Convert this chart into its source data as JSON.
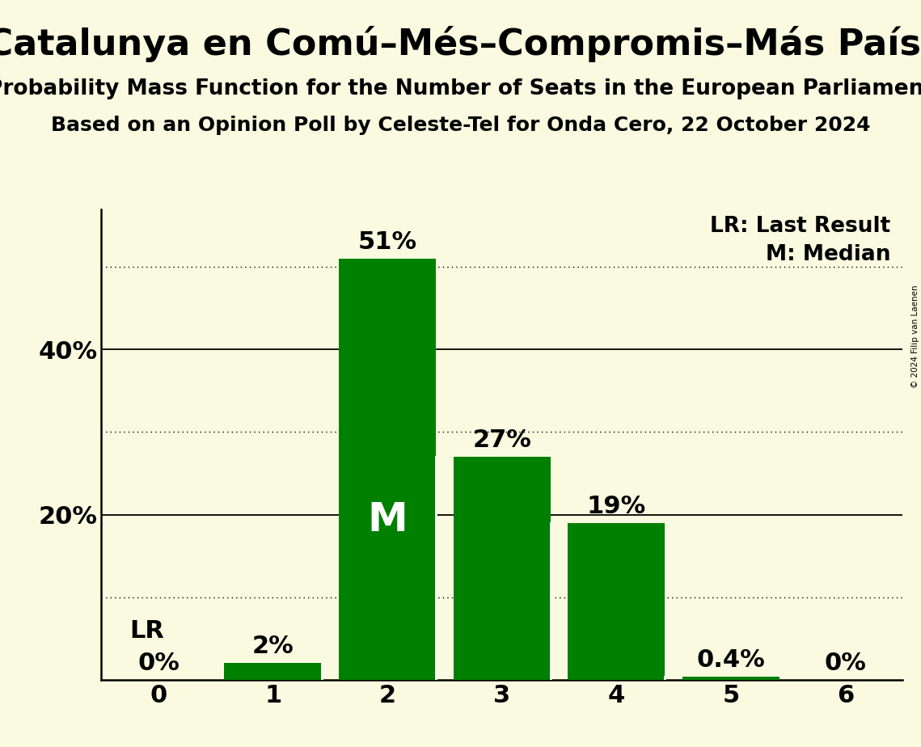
{
  "title_main": "Sumar–Catalunya en Comú–Més–Compromis–Más País–Chunta",
  "subtitle1": "Probability Mass Function for the Number of Seats in the European Parliament",
  "subtitle2": "Based on an Opinion Poll by Celeste-Tel for Onda Cero, 22 October 2024",
  "copyright": "© 2024 Filip van Laenen",
  "seats": [
    0,
    1,
    2,
    3,
    4,
    5,
    6
  ],
  "probabilities": [
    0.0,
    2.0,
    51.0,
    27.0,
    19.0,
    0.4,
    0.0
  ],
  "bar_color": "#008000",
  "background_color": "#FAFAE0",
  "lr_seat": 0,
  "median_seat": 2,
  "dotted_lines": [
    10,
    30,
    50
  ],
  "solid_lines": [
    20,
    40
  ],
  "title_fontsize": 32,
  "subtitle_fontsize": 19,
  "subtitle2_fontsize": 18,
  "bar_label_fontsize": 22,
  "axis_label_fontsize": 22,
  "legend_fontsize": 19,
  "xlim": [
    -0.5,
    6.5
  ],
  "ylim": [
    0,
    57
  ]
}
